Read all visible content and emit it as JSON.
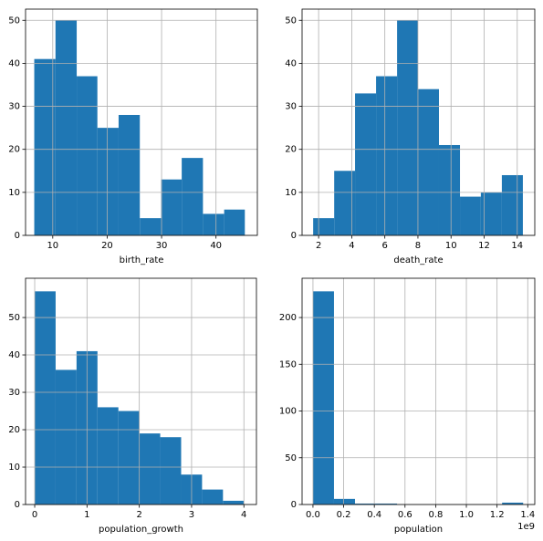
{
  "chart_data": [
    {
      "type": "histogram",
      "xlabel": "birth_rate",
      "color": "#1f77b4",
      "grid": true,
      "bins": [
        6.6,
        10.5,
        14.4,
        18.2,
        22.1,
        26.0,
        29.9,
        33.7,
        37.6,
        41.5,
        45.3
      ],
      "values": [
        41,
        50,
        37,
        25,
        28,
        4,
        13,
        18,
        5,
        6
      ],
      "xlim": [
        5.0,
        47.6
      ],
      "xticks": [
        10,
        20,
        30,
        40
      ],
      "ylim": [
        0,
        52.6
      ],
      "yticks": [
        0,
        10,
        20,
        30,
        40,
        50
      ]
    },
    {
      "type": "histogram",
      "xlabel": "death_rate",
      "color": "#1f77b4",
      "grid": true,
      "bins": [
        1.67,
        2.94,
        4.2,
        5.47,
        6.74,
        8.0,
        9.27,
        10.54,
        11.8,
        13.07,
        14.34
      ],
      "values": [
        4,
        15,
        33,
        37,
        50,
        34,
        21,
        9,
        10,
        14
      ],
      "xlim": [
        1.0,
        15.06
      ],
      "xticks": [
        2,
        4,
        6,
        8,
        10,
        12,
        14
      ],
      "ylim": [
        0,
        52.6
      ],
      "yticks": [
        0,
        10,
        20,
        30,
        40,
        50
      ]
    },
    {
      "type": "histogram",
      "xlabel": "population_growth",
      "color": "#1f77b4",
      "grid": true,
      "bins": [
        0,
        0.4,
        0.8,
        1.2,
        1.6,
        2.0,
        2.4,
        2.8,
        3.2,
        3.6,
        4.0
      ],
      "values": [
        57,
        36,
        41,
        26,
        25,
        19,
        18,
        8,
        4,
        1
      ],
      "xlim": [
        -0.175,
        4.24
      ],
      "xticks": [
        0,
        1,
        2,
        3,
        4
      ],
      "ylim": [
        0,
        60.5
      ],
      "yticks": [
        0,
        10,
        20,
        30,
        40,
        50
      ]
    },
    {
      "type": "histogram",
      "xlabel": "population",
      "x_offset_label": "1e9",
      "color": "#1f77b4",
      "grid": true,
      "bins": [
        0,
        0.137,
        0.274,
        0.411,
        0.548,
        0.685,
        0.822,
        0.959,
        1.096,
        1.233,
        1.37
      ],
      "values": [
        228,
        6,
        1,
        1,
        0,
        0,
        0,
        0,
        0,
        2
      ],
      "xlim": [
        -0.071,
        1.446
      ],
      "xticks": [
        {
          "value": 0,
          "label": "0.0"
        },
        {
          "value": 0.2,
          "label": "0.2"
        },
        {
          "value": 0.4,
          "label": "0.4"
        },
        {
          "value": 0.6,
          "label": "0.6"
        },
        {
          "value": 0.8,
          "label": "0.8"
        },
        {
          "value": 1.0,
          "label": "1.0"
        },
        {
          "value": 1.2,
          "label": "1.2"
        },
        {
          "value": 1.4,
          "label": "1.4"
        }
      ],
      "ylim": [
        0,
        242
      ],
      "yticks": [
        0,
        50,
        100,
        150,
        200
      ]
    }
  ]
}
